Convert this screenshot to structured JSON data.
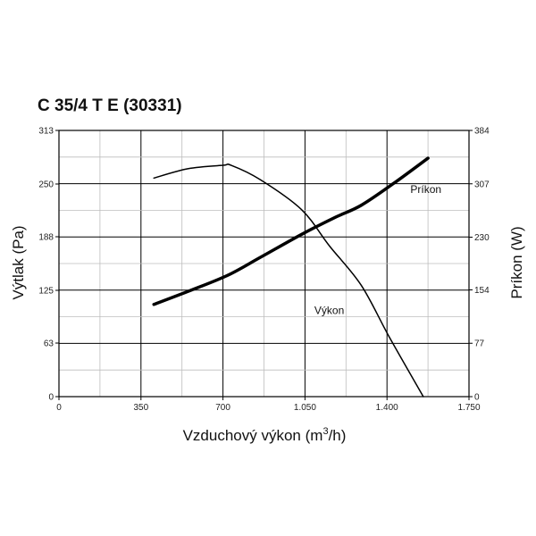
{
  "chart_data": {
    "type": "line",
    "title": "C 35/4 T E (30331)",
    "xlabel": "Vzduchový výkon (m³/h)",
    "xlabel_parts": {
      "main": "Vzduchový výkon (m",
      "sup": "3",
      "end": "/h)"
    },
    "ylabel": "Výtlak (Pa)",
    "y2label": "Príkon (W)",
    "xlim": [
      0,
      1750
    ],
    "ylim": [
      0,
      313
    ],
    "y2lim": [
      0,
      384
    ],
    "x_ticks": [
      {
        "v": 0,
        "label": "0"
      },
      {
        "v": 350,
        "label": "350"
      },
      {
        "v": 700,
        "label": "700"
      },
      {
        "v": 1050,
        "label": "1.050"
      },
      {
        "v": 1400,
        "label": "1.400"
      },
      {
        "v": 1750,
        "label": "1.750"
      }
    ],
    "y_ticks": [
      {
        "v": 0,
        "label": "0"
      },
      {
        "v": 63,
        "label": "63"
      },
      {
        "v": 125,
        "label": "125"
      },
      {
        "v": 188,
        "label": "188"
      },
      {
        "v": 250,
        "label": "250"
      },
      {
        "v": 313,
        "label": "313"
      }
    ],
    "y2_ticks": [
      {
        "v": 0,
        "label": "0"
      },
      {
        "v": 77,
        "label": "77"
      },
      {
        "v": 154,
        "label": "154"
      },
      {
        "v": 230,
        "label": "230"
      },
      {
        "v": 307,
        "label": "307"
      },
      {
        "v": 384,
        "label": "384"
      }
    ],
    "grid": true,
    "series": [
      {
        "name": "Výkon",
        "axis": "left",
        "stroke_width": 1.5,
        "color": "#000000",
        "label_at": {
          "x": 1090,
          "y": 97
        },
        "points": [
          [
            405,
            257
          ],
          [
            550,
            268
          ],
          [
            700,
            272
          ],
          [
            735,
            272
          ],
          [
            860,
            255
          ],
          [
            1035,
            220
          ],
          [
            1155,
            177
          ],
          [
            1290,
            131
          ],
          [
            1410,
            70
          ],
          [
            1555,
            0
          ]
        ]
      },
      {
        "name": "Príkon",
        "axis": "right",
        "stroke_width": 3.5,
        "color": "#000000",
        "label_at": {
          "x": 1500,
          "y": 294
        },
        "points": [
          [
            405,
            133
          ],
          [
            560,
            153
          ],
          [
            720,
            175
          ],
          [
            860,
            201
          ],
          [
            1035,
            234
          ],
          [
            1175,
            258
          ],
          [
            1290,
            276
          ],
          [
            1430,
            308
          ],
          [
            1575,
            344
          ]
        ]
      }
    ]
  }
}
